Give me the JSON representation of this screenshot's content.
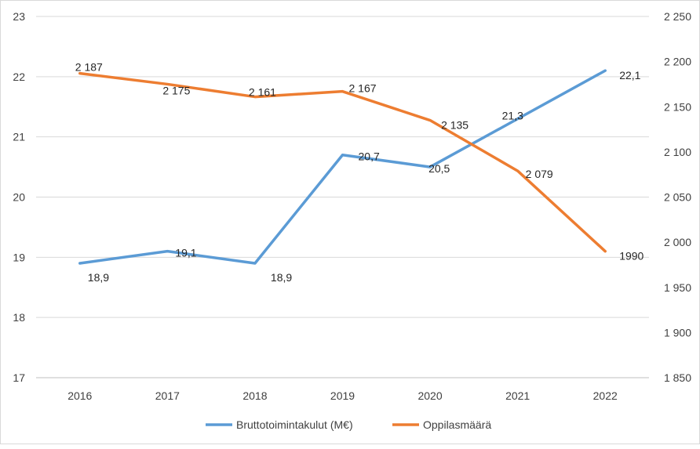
{
  "chart_data": {
    "type": "line",
    "title": "",
    "categories": [
      "2016",
      "2017",
      "2018",
      "2019",
      "2020",
      "2021",
      "2022"
    ],
    "y_left": {
      "min": 17,
      "max": 23,
      "step": 1,
      "ticks": [
        "17",
        "18",
        "19",
        "20",
        "21",
        "22",
        "23"
      ]
    },
    "y_right": {
      "min": 1850,
      "max": 2250,
      "step": 50,
      "ticks": [
        "1 850",
        "1 900",
        "1 950",
        "2 000",
        "2 050",
        "2 100",
        "2 150",
        "2 200",
        "2 250"
      ]
    },
    "grid": true,
    "legend_position": "bottom",
    "series": [
      {
        "name": "Bruttotoimintakulut (M€)",
        "axis": "left",
        "color": "#5b9bd5",
        "values": [
          18.9,
          19.1,
          18.9,
          20.7,
          20.5,
          21.3,
          22.1
        ],
        "labels": [
          "18,9",
          "19,1",
          "18,9",
          "20,7",
          "20,5",
          "21,3",
          "22,1"
        ]
      },
      {
        "name": "Oppilasmäärä",
        "axis": "right",
        "color": "#ed7d31",
        "values": [
          2187,
          2175,
          2161,
          2167,
          2135,
          2079,
          1990
        ],
        "labels": [
          "2 187",
          "2 175",
          "2 161",
          "2 167",
          "2 135",
          "2 079",
          "1990"
        ]
      }
    ]
  }
}
